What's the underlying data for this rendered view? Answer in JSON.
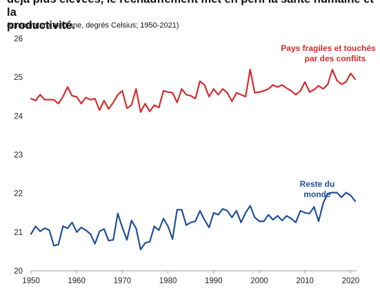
{
  "header": {
    "title_line1": "déjà plus élevées, le réchauffement met en péril la santé humaine et la",
    "title_line2": "productivité.",
    "subtitle": "(température médiane, degrés Celsius; 1950-2021)"
  },
  "colors": {
    "fragile": "#d62a2a",
    "rest": "#1f4e96",
    "axis": "#999999"
  },
  "chart_data": {
    "type": "line",
    "title": "",
    "xlabel": "",
    "ylabel": "",
    "xlim": [
      1950,
      2021
    ],
    "ylim": [
      20,
      26
    ],
    "x_ticks": [
      "1950",
      "1960",
      "1970",
      "1980",
      "1990",
      "2000",
      "2010",
      "2020"
    ],
    "y_ticks": [
      "20",
      "21",
      "22",
      "23",
      "24",
      "25",
      "26"
    ],
    "grid": false,
    "x": [
      1950,
      1951,
      1952,
      1953,
      1954,
      1955,
      1956,
      1957,
      1958,
      1959,
      1960,
      1961,
      1962,
      1963,
      1964,
      1965,
      1966,
      1967,
      1968,
      1969,
      1970,
      1971,
      1972,
      1973,
      1974,
      1975,
      1976,
      1977,
      1978,
      1979,
      1980,
      1981,
      1982,
      1983,
      1984,
      1985,
      1986,
      1987,
      1988,
      1989,
      1990,
      1991,
      1992,
      1993,
      1994,
      1995,
      1996,
      1997,
      1998,
      1999,
      2000,
      2001,
      2002,
      2003,
      2004,
      2005,
      2006,
      2007,
      2008,
      2009,
      2010,
      2011,
      2012,
      2013,
      2014,
      2015,
      2016,
      2017,
      2018,
      2019,
      2020,
      2021
    ],
    "series": [
      {
        "name": "Pays fragiles et touchés par des conflits",
        "label_line1": "Pays fragiles et touchés",
        "label_line2": "par des conflits",
        "values": [
          24.45,
          24.4,
          24.55,
          24.42,
          24.42,
          24.42,
          24.32,
          24.5,
          24.75,
          24.52,
          24.5,
          24.32,
          24.48,
          24.42,
          24.45,
          24.15,
          24.4,
          24.18,
          24.35,
          24.55,
          24.65,
          24.2,
          24.28,
          24.7,
          24.1,
          24.32,
          24.12,
          24.28,
          24.22,
          24.65,
          24.62,
          24.6,
          24.35,
          24.7,
          24.55,
          24.52,
          24.45,
          24.9,
          24.8,
          24.5,
          24.7,
          24.55,
          24.7,
          24.6,
          24.38,
          24.6,
          24.55,
          24.5,
          25.2,
          24.6,
          24.62,
          24.65,
          24.7,
          24.8,
          24.75,
          24.8,
          24.72,
          24.65,
          24.55,
          24.65,
          24.88,
          24.62,
          24.68,
          24.78,
          24.7,
          24.82,
          25.2,
          24.92,
          24.82,
          24.88,
          25.1,
          24.95
        ]
      },
      {
        "name": "Reste du monde",
        "label_line1": "Reste du",
        "label_line2": "monde",
        "values": [
          20.95,
          21.15,
          21.02,
          21.1,
          21.05,
          20.65,
          20.68,
          21.15,
          21.1,
          21.25,
          21.0,
          21.12,
          21.05,
          20.95,
          20.7,
          21.02,
          21.08,
          20.78,
          20.8,
          21.48,
          21.12,
          20.8,
          21.3,
          21.1,
          20.55,
          20.72,
          20.75,
          21.15,
          21.05,
          21.35,
          21.15,
          20.82,
          21.58,
          21.58,
          21.18,
          21.25,
          21.28,
          21.55,
          21.32,
          21.12,
          21.5,
          21.45,
          21.6,
          21.55,
          21.38,
          21.55,
          21.25,
          21.5,
          21.68,
          21.38,
          21.28,
          21.28,
          21.45,
          21.32,
          21.42,
          21.3,
          21.42,
          21.35,
          21.25,
          21.55,
          21.5,
          21.48,
          21.65,
          21.28,
          21.75,
          22.0,
          22.02,
          22.02,
          21.9,
          22.02,
          21.95,
          21.8
        ]
      }
    ]
  }
}
